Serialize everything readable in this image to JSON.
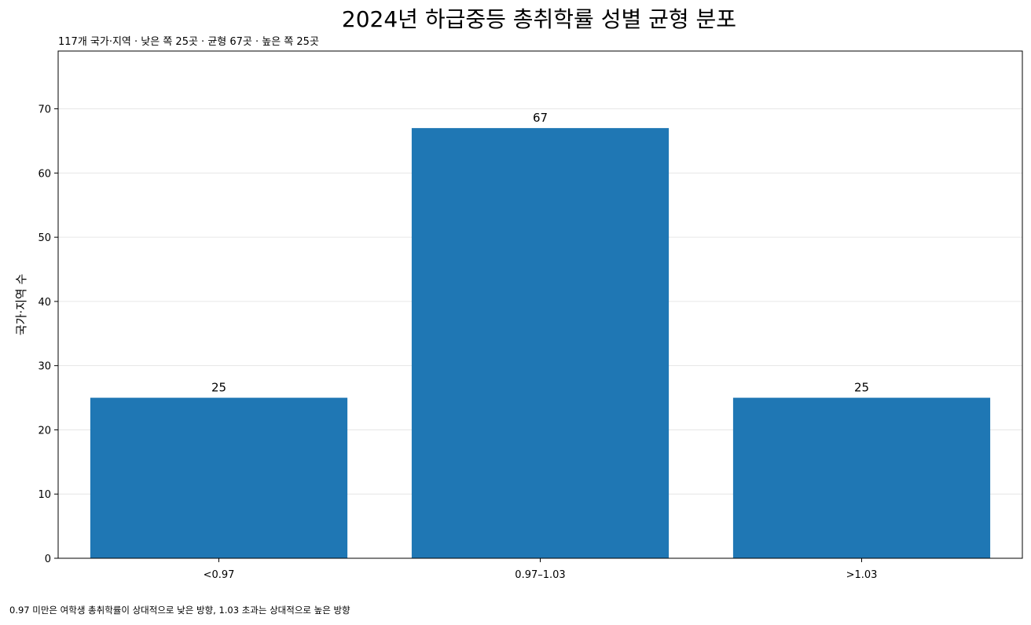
{
  "chart_data": {
    "type": "bar",
    "title": "2024년 하급중등 총취학률 성별 균형 분포",
    "subtitle": "117개 국가·지역 · 낮은 쪽 25곳 · 균형 67곳 · 높은 쪽 25곳",
    "xlabel": "",
    "ylabel": "국가·지역 수",
    "categories": [
      "<0.97",
      "0.97–1.03",
      ">1.03"
    ],
    "values": [
      25,
      67,
      25
    ],
    "ylim": [
      0,
      79
    ],
    "yticks": [
      0,
      10,
      20,
      30,
      40,
      50,
      60,
      70
    ],
    "grid": "y",
    "bar_color": "#1f77b4",
    "footnote": "0.97 미만은 여학생 총취학률이 상대적으로 낮은 방향, 1.03 초과는 상대적으로 높은 방향"
  }
}
